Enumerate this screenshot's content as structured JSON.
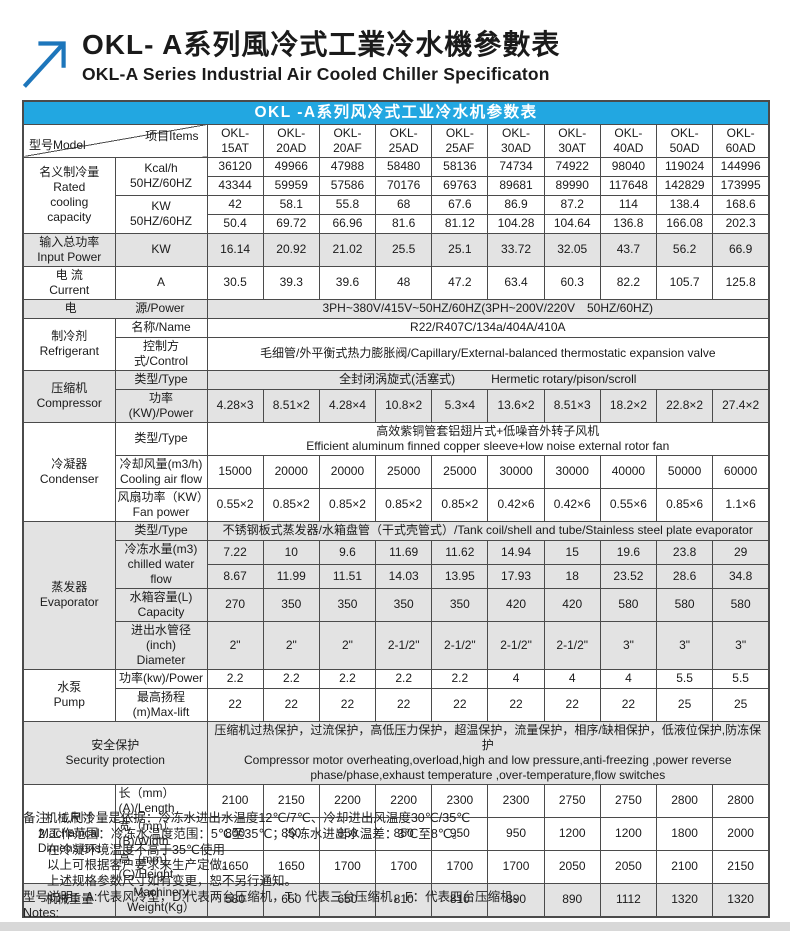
{
  "page": {
    "title_zh": "OKL- A系列風冷式工業冷水機參數表",
    "title_en": "OKL-A Series Industrial Air Cooled Chiller Specificaton"
  },
  "colors": {
    "accent_blue": "#22a7e1",
    "logo_blue": "#1d76bb",
    "shade_gray": "#e3e3e3",
    "strip_gray": "#d8d8d8"
  },
  "icons": {
    "brand_logo": "arrow-up-right-icon"
  },
  "table": {
    "title": "OKL -A系列风冷式工业冷水机参数表",
    "corner": {
      "model": "型号Model",
      "items": "项目Items"
    },
    "models": [
      [
        "OKL-",
        "15AT"
      ],
      [
        "OKL-",
        "20AD"
      ],
      [
        "OKL-",
        "20AF"
      ],
      [
        "OKL-",
        "25AD"
      ],
      [
        "OKL-",
        "25AF"
      ],
      [
        "OKL-",
        "30AD"
      ],
      [
        "OKL-",
        "30AT"
      ],
      [
        "OKL-",
        "40AD"
      ],
      [
        "OKL-",
        "50AD"
      ],
      [
        "OKL-",
        "60AD"
      ]
    ],
    "sections": [
      {
        "shaded": false,
        "cat": [
          "名义制冷量",
          "Rated",
          "cooling",
          "capacity"
        ],
        "rows": [
          {
            "kind": "pair",
            "label": [
              "Kcal/h",
              "50HZ/60HZ"
            ],
            "values": [
              [
                "36120",
                "49966",
                "47988",
                "58480",
                "58136",
                "74734",
                "74922",
                "98040",
                "119024",
                "144996"
              ],
              [
                "43344",
                "59959",
                "57586",
                "70176",
                "69763",
                "89681",
                "89990",
                "117648",
                "142829",
                "173995"
              ]
            ]
          },
          {
            "kind": "pair",
            "label": [
              "KW",
              "50HZ/60HZ"
            ],
            "values": [
              [
                "42",
                "58.1",
                "55.8",
                "68",
                "67.6",
                "86.9",
                "87.2",
                "114",
                "138.4",
                "168.6"
              ],
              [
                "50.4",
                "69.72",
                "66.96",
                "81.6",
                "81.12",
                "104.28",
                "104.64",
                "136.8",
                "166.08",
                "202.3"
              ]
            ]
          }
        ]
      },
      {
        "shaded": true,
        "cat": [
          "输入总功率",
          "Input Power"
        ],
        "rows": [
          {
            "kind": "values",
            "label": [
              "KW"
            ],
            "values": [
              "16.14",
              "20.92",
              "21.02",
              "25.5",
              "25.1",
              "33.72",
              "32.05",
              "43.7",
              "56.2",
              "66.9"
            ]
          }
        ]
      },
      {
        "shaded": false,
        "cat": [
          "电 流",
          "Current"
        ],
        "rows": [
          {
            "kind": "values",
            "label": [
              "A"
            ],
            "values": [
              "30.5",
              "39.3",
              "39.6",
              "48",
              "47.2",
              "63.4",
              "60.3",
              "82.2",
              "105.7",
              "125.8"
            ]
          }
        ]
      },
      {
        "shaded": true,
        "fullLabel": {
          "left": "电",
          "right": "源/Power"
        },
        "rows": [
          {
            "kind": "span",
            "lines": [
              "3PH~380V/415V~50HZ/60HZ(3PH~200V/220V　50HZ/60HZ)"
            ]
          }
        ]
      },
      {
        "shaded": false,
        "cat": [
          "制冷剂",
          "Refrigerant"
        ],
        "rows": [
          {
            "kind": "span",
            "label": [
              "名称/Name"
            ],
            "lines": [
              "R22/R407C/134a/404A/410A"
            ]
          },
          {
            "kind": "span",
            "label": [
              "控制方式/Control"
            ],
            "lines": [
              "毛细管/外平衡式热力膨胀阀/Capillary/External-balanced thermostatic expansion valve"
            ]
          }
        ]
      },
      {
        "shaded": true,
        "cat": [
          "压缩机",
          "Compressor"
        ],
        "rows": [
          {
            "kind": "span",
            "label": [
              "类型/Type"
            ],
            "lines": [
              "全封闭涡旋式(活塞式)　　　Hermetic rotary/pison/scroll"
            ]
          },
          {
            "kind": "values",
            "label": [
              "功率(KW)/Power"
            ],
            "values": [
              "4.28×3",
              "8.51×2",
              "4.28×4",
              "10.8×2",
              "5.3×4",
              "13.6×2",
              "8.51×3",
              "18.2×2",
              "22.8×2",
              "27.4×2"
            ]
          }
        ]
      },
      {
        "shaded": false,
        "cat": [
          "冷凝器",
          "Condenser"
        ],
        "rows": [
          {
            "kind": "span",
            "label": [
              "类型/Type"
            ],
            "lines": [
              "高效紫铜管套铝翅片式+低噪音外转子风机",
              "Efficient aluminum finned copper sleeve+low noise external rotor fan"
            ]
          },
          {
            "kind": "values",
            "label": [
              "冷却风量(m3/h)",
              "Cooling air flow"
            ],
            "values": [
              "15000",
              "20000",
              "20000",
              "25000",
              "25000",
              "30000",
              "30000",
              "40000",
              "50000",
              "60000"
            ]
          },
          {
            "kind": "values",
            "label": [
              "风扇功率（KW）",
              "Fan power"
            ],
            "values": [
              "0.55×2",
              "0.85×2",
              "0.85×2",
              "0.85×2",
              "0.85×2",
              "0.42×6",
              "0.42×6",
              "0.55×6",
              "0.85×6",
              "1.1×6"
            ]
          }
        ]
      },
      {
        "shaded": true,
        "cat": [
          "蒸发器",
          "Evaporator"
        ],
        "rows": [
          {
            "kind": "span",
            "label": [
              "类型/Type"
            ],
            "lines": [
              "不锈钢板式蒸发器/水箱盘管（干式壳管式）/Tank coil/shell and tube/Stainless steel plate evaporator"
            ]
          },
          {
            "kind": "pair",
            "label": [
              "冷冻水量(m3)",
              "chilled water flow"
            ],
            "values": [
              [
                "7.22",
                "10",
                "9.6",
                "11.69",
                "11.62",
                "14.94",
                "15",
                "19.6",
                "23.8",
                "29"
              ],
              [
                "8.67",
                "11.99",
                "11.51",
                "14.03",
                "13.95",
                "17.93",
                "18",
                "23.52",
                "28.6",
                "34.8"
              ]
            ]
          },
          {
            "kind": "values",
            "label": [
              "水箱容量(L)",
              "Capacity"
            ],
            "values": [
              "270",
              "350",
              "350",
              "350",
              "350",
              "420",
              "420",
              "580",
              "580",
              "580"
            ]
          },
          {
            "kind": "values",
            "label": [
              "进出水管径(inch)",
              "Diameter"
            ],
            "values": [
              "2\"",
              "2\"",
              "2\"",
              "2-1/2\"",
              "2-1/2\"",
              "2-1/2\"",
              "2-1/2\"",
              "3\"",
              "3\"",
              "3\""
            ]
          }
        ]
      },
      {
        "shaded": false,
        "cat": [
          "水泵",
          "Pump"
        ],
        "rows": [
          {
            "kind": "values",
            "label": [
              "功率(kw)/Power"
            ],
            "values": [
              "2.2",
              "2.2",
              "2.2",
              "2.2",
              "2.2",
              "4",
              "4",
              "4",
              "5.5",
              "5.5"
            ]
          },
          {
            "kind": "values",
            "label": [
              "最高扬程(m)Max-lift"
            ],
            "values": [
              "22",
              "22",
              "22",
              "22",
              "22",
              "22",
              "22",
              "22",
              "25",
              "25"
            ]
          }
        ]
      },
      {
        "shaded": true,
        "fullLabel": {
          "lines": [
            "安全保护",
            "Security protection"
          ]
        },
        "rows": [
          {
            "kind": "span",
            "lines": [
              "压缩机过热保护，过流保护，高低压力保护，超温保护，流量保护，相序/缺相保护，低液位保护,防冻保护",
              "Compressor motor overheating,overload,high and low pressure,anti-freezing ,power reverse",
              "phase/phase,exhaust temperature ,over-temperature,flow switches"
            ]
          }
        ]
      },
      {
        "shaded": false,
        "cat": [
          "机械尺寸",
          "Machanical",
          "Dimensions"
        ],
        "rows": [
          {
            "kind": "values",
            "label": [
              "长（mm）(A)/Length"
            ],
            "align": "left",
            "values": [
              "2100",
              "2150",
              "2200",
              "2200",
              "2300",
              "2300",
              "2750",
              "2750",
              "2800",
              "2800"
            ]
          },
          {
            "kind": "values",
            "label": [
              "宽（mm）(B)/Width"
            ],
            "align": "left",
            "values": [
              "800",
              "850",
              "850",
              "850",
              "950",
              "950",
              "1200",
              "1200",
              "1800",
              "2000"
            ]
          },
          {
            "kind": "values",
            "label": [
              "高（mm）(C)/Height"
            ],
            "align": "left",
            "values": [
              "1650",
              "1650",
              "1700",
              "1700",
              "1700",
              "1700",
              "2050",
              "2050",
              "2100",
              "2150"
            ]
          }
        ]
      },
      {
        "shaded": true,
        "cat": [
          "机械重量"
        ],
        "rows": [
          {
            "kind": "values",
            "label": [
              "Machinery",
              "Weight(Kg）"
            ],
            "values": [
              "580",
              "650",
              "650",
              "810",
              "810",
              "890",
              "890",
              "1112",
              "1320",
              "1320"
            ]
          }
        ]
      }
    ]
  },
  "footnotes": [
    {
      "indent": 0,
      "text": "备注：1.制冷量是依据：冷冻水进出水温度12℃/7℃、冷却进出风温度30℃/35℃"
    },
    {
      "indent": 1,
      "text": "2.工作范围：冷冻水温度范围：5℃至35℃；冷冻水进出水温差：3℃至8℃。"
    },
    {
      "indent": 2,
      "text": "在冷凝环境温度不高于35℃使用"
    },
    {
      "indent": 2,
      "text": "以上可根据客户要求来生产定做。"
    },
    {
      "indent": 2,
      "text": "上述规格参数尺寸如有变更，恕不另行通知。"
    },
    {
      "indent": 0,
      "text": "型号说明：A:代表风冷型，D:代表两台压缩机，T：代表三台压缩机，F：代表四台压缩机。"
    },
    {
      "indent": 0,
      "text": "Notes:"
    }
  ]
}
